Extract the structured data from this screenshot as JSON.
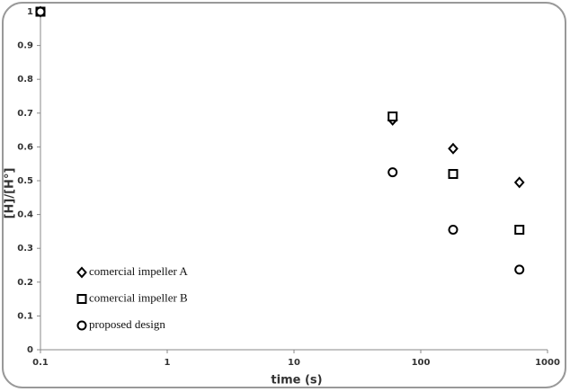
{
  "chart_data": {
    "type": "scatter",
    "x_label": "time (s)",
    "y_label": "[H]/[H°]",
    "log_x": true,
    "grid": false,
    "legend": "lower left",
    "xlim": [
      0.1,
      1000
    ],
    "xticks": [
      0.1,
      1,
      10,
      100,
      1000
    ],
    "ylim": [
      0,
      1
    ],
    "yticks": [
      0,
      0.1,
      0.2,
      0.3,
      0.4,
      0.5,
      0.6,
      0.7,
      0.8,
      0.9,
      1
    ],
    "series": [
      {
        "name": "comercial impeller A",
        "color": "#000000",
        "marker": "diamond",
        "x": [
          0.1,
          60,
          180,
          600
        ],
        "values": [
          1,
          0.68,
          0.595,
          0.495
        ]
      },
      {
        "name": "comercial impeller B",
        "color": "#000000",
        "marker": "square",
        "x": [
          0.1,
          60,
          180,
          600
        ],
        "values": [
          1,
          0.69,
          0.52,
          0.355
        ]
      },
      {
        "name": "proposed design",
        "color": "#000000",
        "marker": "circle",
        "x": [
          0.1,
          60,
          180,
          600
        ],
        "values": [
          1,
          0.525,
          0.355,
          0.237
        ]
      }
    ]
  }
}
